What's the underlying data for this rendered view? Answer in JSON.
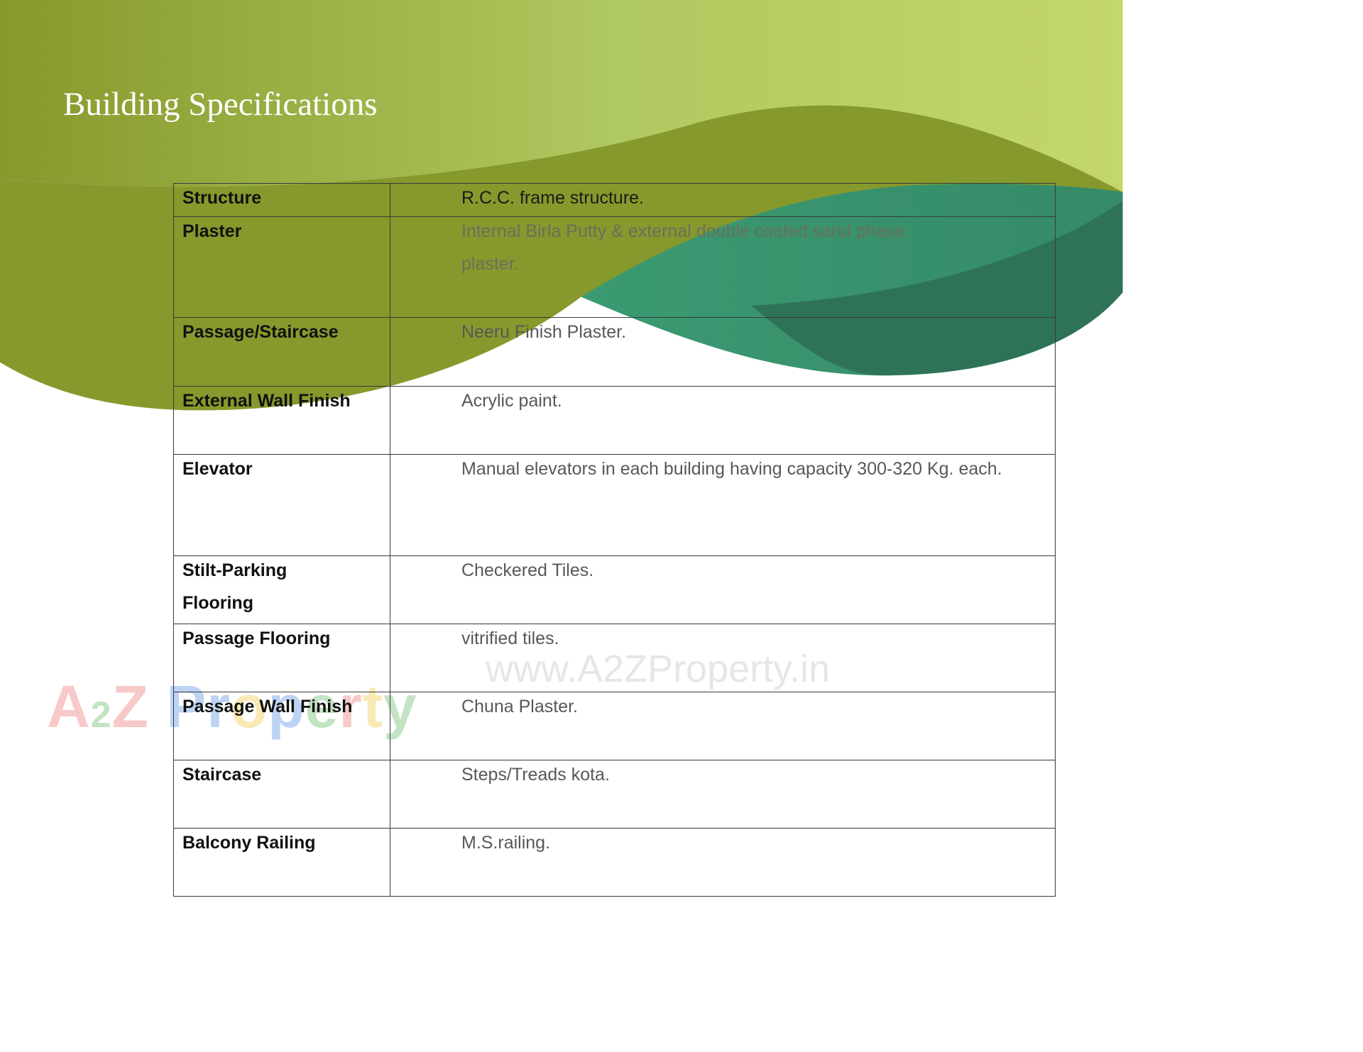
{
  "header": {
    "title": "Building Specifications"
  },
  "colors": {
    "olive": "#86992c",
    "light_green": "#c3d76b",
    "teal": "#3b9870",
    "dark_teal": "#2e7358",
    "border": "#3a3a3a"
  },
  "specs": [
    {
      "label": "Structure",
      "value": "R.C.C. frame structure."
    },
    {
      "label": "Plaster",
      "value": "Internal Birla Putty & external double coated sand phase plaster."
    },
    {
      "label": "Passage/Staircase",
      "value": "Neeru Finish Plaster."
    },
    {
      "label": "External Wall Finish",
      "value": "Acrylic paint."
    },
    {
      "label": "Elevator",
      "value": "Manual elevators in each building having capacity 300-320 Kg. each."
    },
    {
      "label": "Stilt-Parking Flooring",
      "value": "Checkered Tiles."
    },
    {
      "label": "Passage Flooring",
      "value": "vitrified tiles."
    },
    {
      "label": "Passage Wall Finish",
      "value": "Chuna Plaster."
    },
    {
      "label": "Staircase",
      "value": "Steps/Treads kota."
    },
    {
      "label": "Balcony Railing",
      "value": "M.S.railing."
    }
  ],
  "watermark": {
    "url": "www.A2ZProperty.in",
    "logo": "A2Z Property"
  }
}
